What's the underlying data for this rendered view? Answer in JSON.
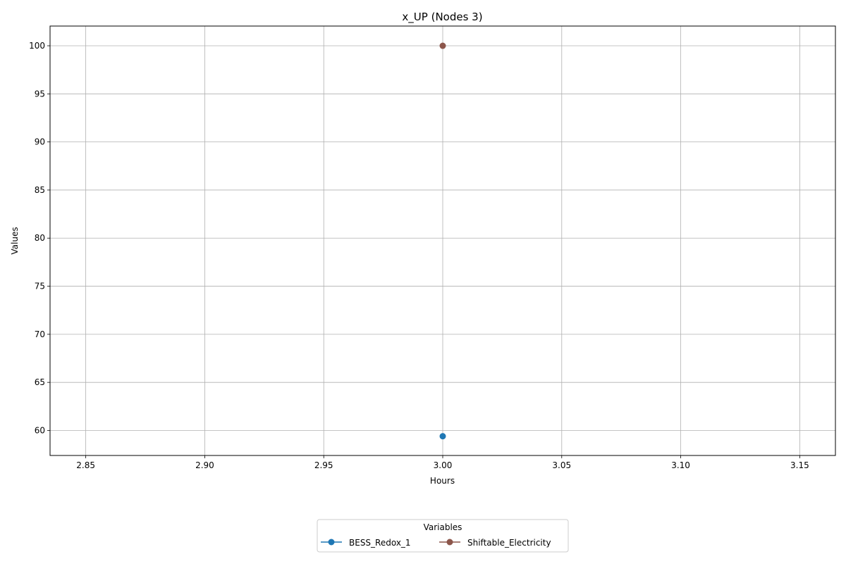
{
  "chart_data": {
    "type": "line",
    "title": "x_UP (Nodes 3)",
    "xlabel": "Hours",
    "ylabel": "Values",
    "xlim": [
      2.835,
      3.165
    ],
    "ylim": [
      57.4,
      102.05
    ],
    "xticks": [
      2.85,
      2.9,
      2.95,
      3.0,
      3.05,
      3.1,
      3.15
    ],
    "xtick_labels": [
      "2.85",
      "2.90",
      "2.95",
      "3.00",
      "3.05",
      "3.10",
      "3.15"
    ],
    "yticks": [
      60,
      65,
      70,
      75,
      80,
      85,
      90,
      95,
      100
    ],
    "ytick_labels": [
      "60",
      "65",
      "70",
      "75",
      "80",
      "85",
      "90",
      "95",
      "100"
    ],
    "grid": true,
    "legend": {
      "title": "Variables",
      "placement": "bottom-center"
    },
    "series": [
      {
        "name": "BESS_Redox_1",
        "color": "#1f77b4",
        "x": [
          3.0
        ],
        "y": [
          59.4
        ]
      },
      {
        "name": "Shiftable_Electricity",
        "color": "#8c564b",
        "x": [
          3.0
        ],
        "y": [
          100
        ]
      }
    ]
  }
}
